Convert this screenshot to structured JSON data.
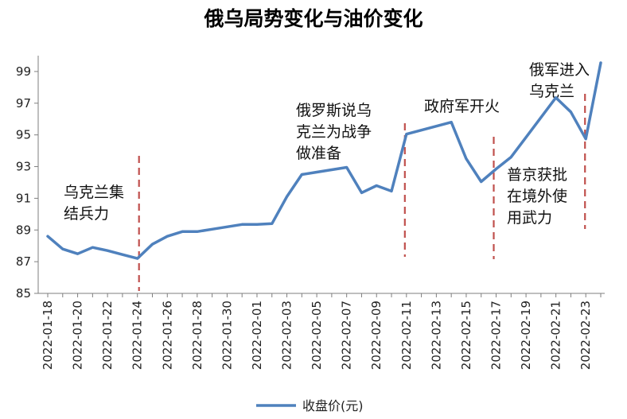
{
  "chart_data": {
    "type": "line",
    "title": "俄乌局势变化与油价变化",
    "xlabel": "",
    "ylabel": "",
    "ylim": [
      85,
      100
    ],
    "yticks": [
      85,
      87,
      89,
      91,
      93,
      95,
      97,
      99
    ],
    "legend": {
      "position": "bottom",
      "label": "收盘价(元)"
    },
    "colors": {
      "line": "#4f81bd",
      "marker_line": "#c0504d",
      "axis": "#7f7f7f"
    },
    "x": [
      "2022-01-18",
      "2022-01-19",
      "2022-01-20",
      "2022-01-21",
      "2022-01-22",
      "2022-01-23",
      "2022-01-24",
      "2022-01-25",
      "2022-01-26",
      "2022-01-27",
      "2022-01-28",
      "2022-01-29",
      "2022-01-30",
      "2022-01-31",
      "2022-02-01",
      "2022-02-02",
      "2022-02-03",
      "2022-02-04",
      "2022-02-05",
      "2022-02-06",
      "2022-02-07",
      "2022-02-08",
      "2022-02-09",
      "2022-02-10",
      "2022-02-11",
      "2022-02-12",
      "2022-02-13",
      "2022-02-14",
      "2022-02-15",
      "2022-02-16",
      "2022-02-17",
      "2022-02-18",
      "2022-02-19",
      "2022-02-20",
      "2022-02-21",
      "2022-02-22",
      "2022-02-23",
      "2022-02-24"
    ],
    "x_tick_labels": [
      "2022-01-18",
      "2022-01-20",
      "2022-01-22",
      "2022-01-24",
      "2022-01-26",
      "2022-01-28",
      "2022-01-30",
      "2022-02-01",
      "2022-02-03",
      "2022-02-05",
      "2022-02-07",
      "2022-02-09",
      "2022-02-11",
      "2022-02-13",
      "2022-02-15",
      "2022-02-17",
      "2022-02-19",
      "2022-02-21",
      "2022-02-23"
    ],
    "series": [
      {
        "name": "收盘价(元)",
        "values": [
          88.6,
          87.8,
          87.5,
          87.9,
          87.7,
          87.45,
          87.2,
          88.1,
          88.6,
          88.9,
          88.9,
          89.05,
          89.2,
          89.35,
          89.35,
          89.4,
          91.1,
          92.5,
          92.65,
          92.8,
          92.95,
          91.35,
          91.8,
          91.45,
          95.05,
          95.3,
          95.55,
          95.8,
          93.5,
          92.05,
          92.85,
          93.6,
          94.85,
          96.1,
          97.35,
          96.45,
          94.75,
          99.55
        ]
      }
    ],
    "events": [
      {
        "date": "2022-01-24",
        "lines": [
          "乌克兰集",
          "结兵力"
        ]
      },
      {
        "date": "2022-02-11",
        "lines": [
          "俄罗斯说乌",
          "克兰为战争",
          "做准备"
        ]
      },
      {
        "date": "2022-02-17",
        "lines": [
          "政府军开火"
        ]
      },
      {
        "date": "2022-02-23",
        "lines": [
          "普京获批",
          "在境外使",
          "用武力"
        ]
      },
      {
        "date": "2022-02-24",
        "lines": [
          "俄军进入",
          "乌克兰"
        ]
      }
    ]
  }
}
